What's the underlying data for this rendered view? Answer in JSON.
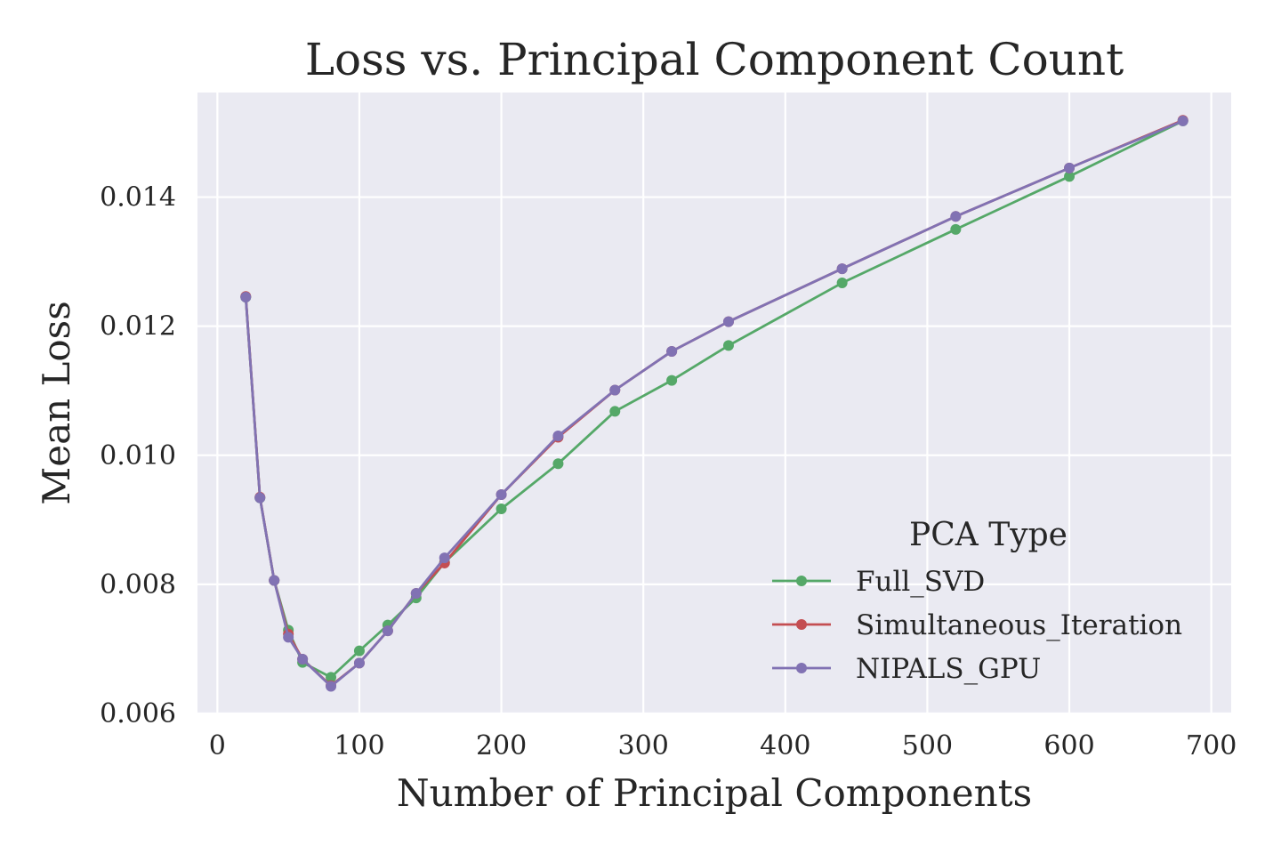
{
  "chart_data": {
    "type": "line",
    "title": "Loss vs. Principal Component Count",
    "xlabel": "Number of Principal Components",
    "ylabel": "Mean Loss",
    "xlim": [
      -14,
      714
    ],
    "ylim": [
      0.006,
      0.01562
    ],
    "xticks": [
      0,
      100,
      200,
      300,
      400,
      500,
      600,
      700
    ],
    "xtick_labels": [
      "0",
      "100",
      "200",
      "300",
      "400",
      "500",
      "600",
      "700"
    ],
    "yticks": [
      0.006,
      0.008,
      0.01,
      0.012,
      0.014
    ],
    "ytick_labels": [
      "0.006",
      "0.008",
      "0.010",
      "0.012",
      "0.014"
    ],
    "grid": true,
    "legend_title": "PCA Type",
    "legend_position": "lower-right",
    "background": "#eaeaf2",
    "x": [
      20,
      30,
      40,
      50,
      60,
      80,
      100,
      120,
      140,
      160,
      200,
      240,
      280,
      320,
      360,
      440,
      520,
      600,
      680
    ],
    "series": [
      {
        "name": "Full_SVD",
        "color": "#55a868",
        "values": [
          0.01245,
          0.00934,
          0.00806,
          0.00729,
          0.00679,
          0.00656,
          0.00697,
          0.00737,
          0.00779,
          0.00834,
          0.00917,
          0.00987,
          0.01068,
          0.01116,
          0.0117,
          0.01267,
          0.0135,
          0.01432,
          0.01518
        ]
      },
      {
        "name": "Simultaneous_Iteration",
        "color": "#c44e52",
        "values": [
          0.01246,
          0.00935,
          0.00806,
          0.00723,
          0.00684,
          0.00643,
          0.00678,
          0.00728,
          0.00786,
          0.00833,
          0.00939,
          0.01028,
          0.01101,
          0.01161,
          0.01207,
          0.01289,
          0.0137,
          0.01445,
          0.01519
        ]
      },
      {
        "name": "NIPALS_GPU",
        "color": "#8172b3",
        "values": [
          0.01245,
          0.00934,
          0.00806,
          0.00718,
          0.00684,
          0.00642,
          0.00678,
          0.00728,
          0.00786,
          0.00841,
          0.00939,
          0.0103,
          0.01101,
          0.01161,
          0.01207,
          0.01289,
          0.0137,
          0.01445,
          0.01518
        ]
      }
    ]
  }
}
